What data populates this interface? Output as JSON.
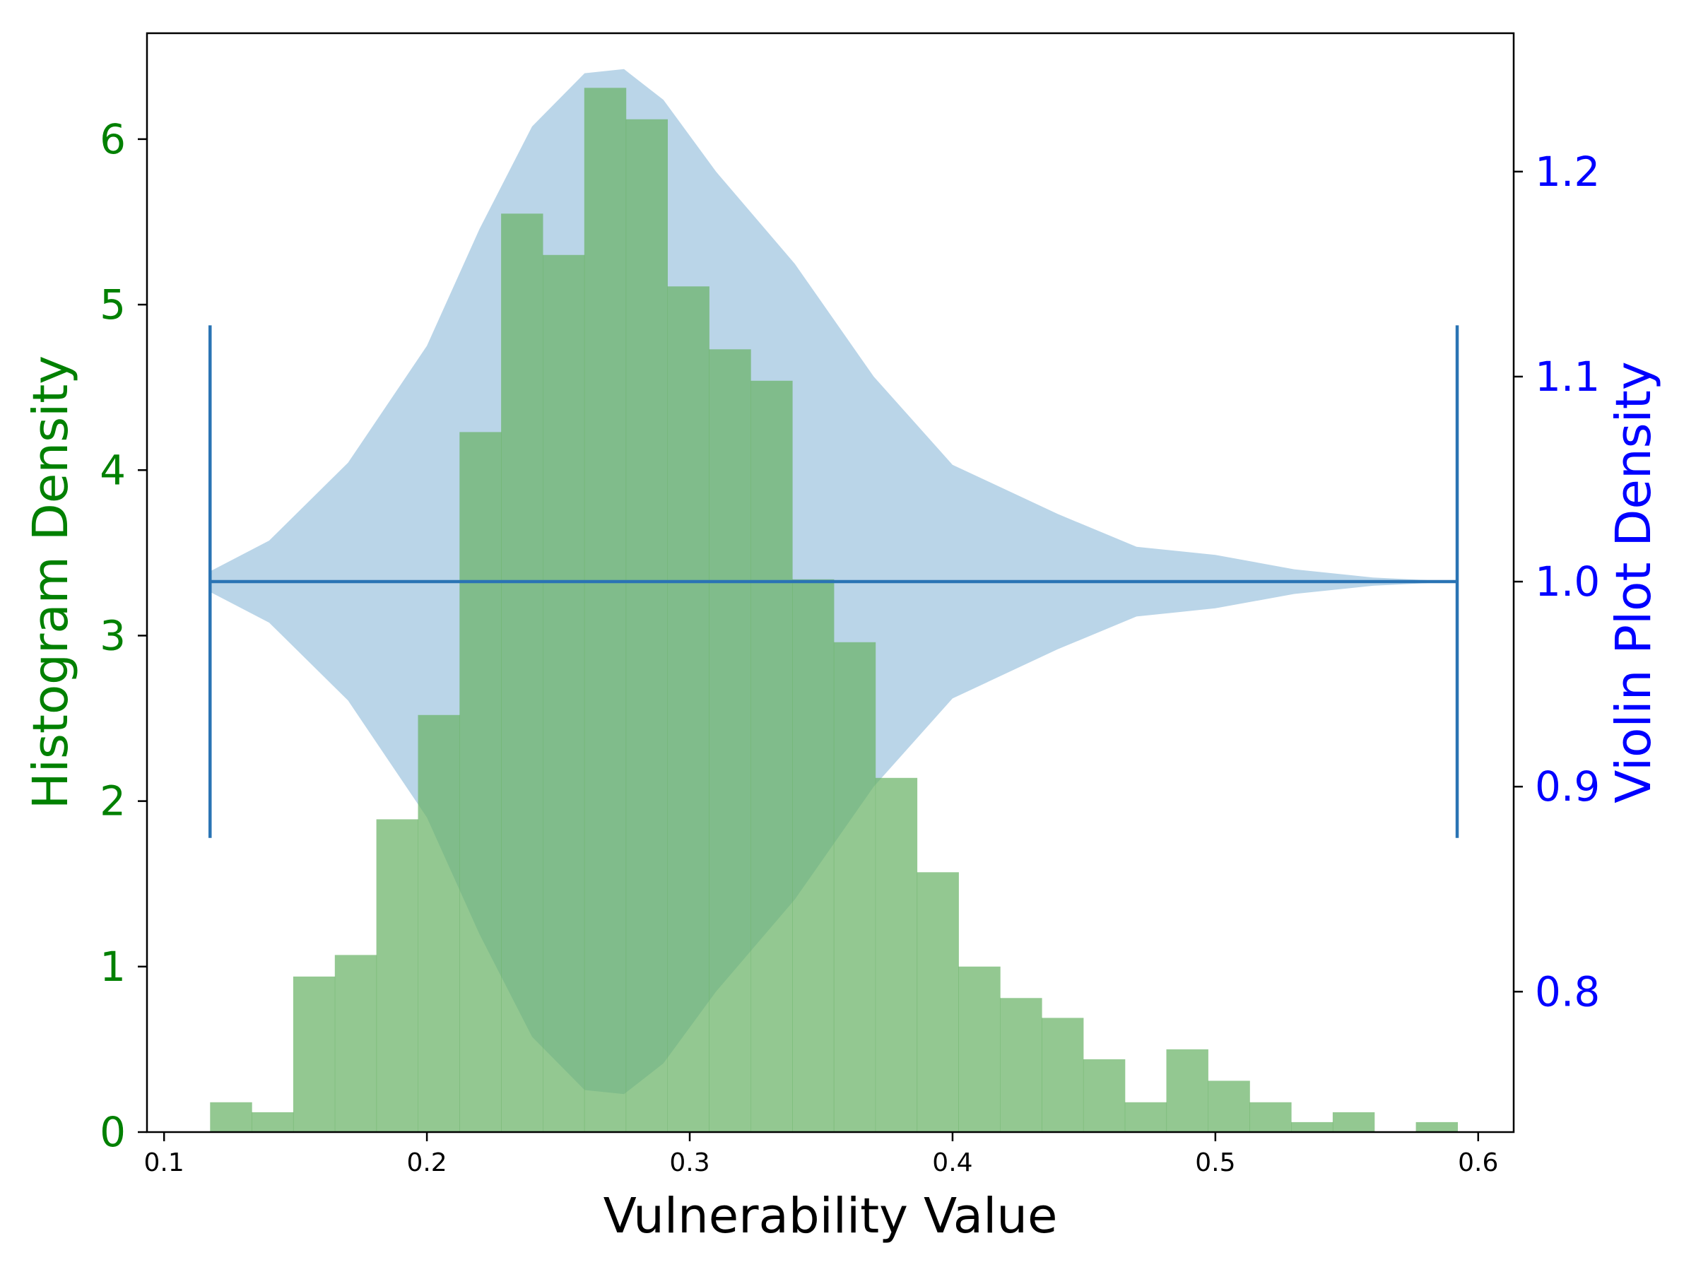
{
  "chart_data": {
    "type": "bar",
    "title": "",
    "xlabel": "Vulnerability Value",
    "ylabel_left": "Histogram Density",
    "ylabel_right": "Violin Plot Density",
    "xlim": [
      0.0935,
      0.6135
    ],
    "ylim_left": [
      0,
      6.64
    ],
    "ylim_right": [
      0.7315,
      1.2675
    ],
    "x_ticks": [
      0.1,
      0.2,
      0.3,
      0.4,
      0.5,
      0.6
    ],
    "x_tick_labels": [
      "0.1",
      "0.2",
      "0.3",
      "0.4",
      "0.5",
      "0.6"
    ],
    "y_left_ticks": [
      0,
      1,
      2,
      3,
      4,
      5,
      6
    ],
    "y_left_tick_labels": [
      "0",
      "1",
      "2",
      "3",
      "4",
      "5",
      "6"
    ],
    "y_right_ticks": [
      0.8,
      0.9,
      1.0,
      1.1,
      1.2
    ],
    "y_right_tick_labels": [
      "0.8",
      "0.9",
      "1.0",
      "1.1",
      "1.2"
    ],
    "histogram": {
      "bin_start": 0.1175,
      "bin_width": 0.01582,
      "values": [
        0.18,
        0.12,
        0.94,
        1.07,
        1.89,
        2.52,
        4.23,
        5.55,
        5.3,
        6.31,
        6.12,
        5.11,
        4.73,
        4.54,
        3.34,
        2.96,
        2.14,
        1.57,
        1.0,
        0.81,
        0.69,
        0.44,
        0.18,
        0.5,
        0.31,
        0.18,
        0.06,
        0.12,
        0.0,
        0.06
      ]
    },
    "violin": {
      "position": 1.0,
      "min": 0.1175,
      "max": 0.592,
      "whisker_low": 0.875,
      "whisker_high": 1.125,
      "profile_x": [
        0.1175,
        0.14,
        0.17,
        0.2,
        0.22,
        0.24,
        0.26,
        0.275,
        0.29,
        0.31,
        0.34,
        0.37,
        0.4,
        0.44,
        0.47,
        0.5,
        0.53,
        0.56,
        0.592
      ],
      "profile_halfwidth": [
        0.005,
        0.02,
        0.058,
        0.115,
        0.172,
        0.222,
        0.248,
        0.25,
        0.235,
        0.2,
        0.155,
        0.1,
        0.057,
        0.033,
        0.017,
        0.013,
        0.006,
        0.002,
        0.0
      ]
    },
    "colors": {
      "histogram": "#6ab366",
      "violin_fill": "#bad5e8",
      "violin_lines": "#2a74b4",
      "left_axis": "#008000",
      "right_axis": "#0000ff",
      "x_axis": "#000000"
    },
    "grid": false,
    "legend": "none"
  }
}
